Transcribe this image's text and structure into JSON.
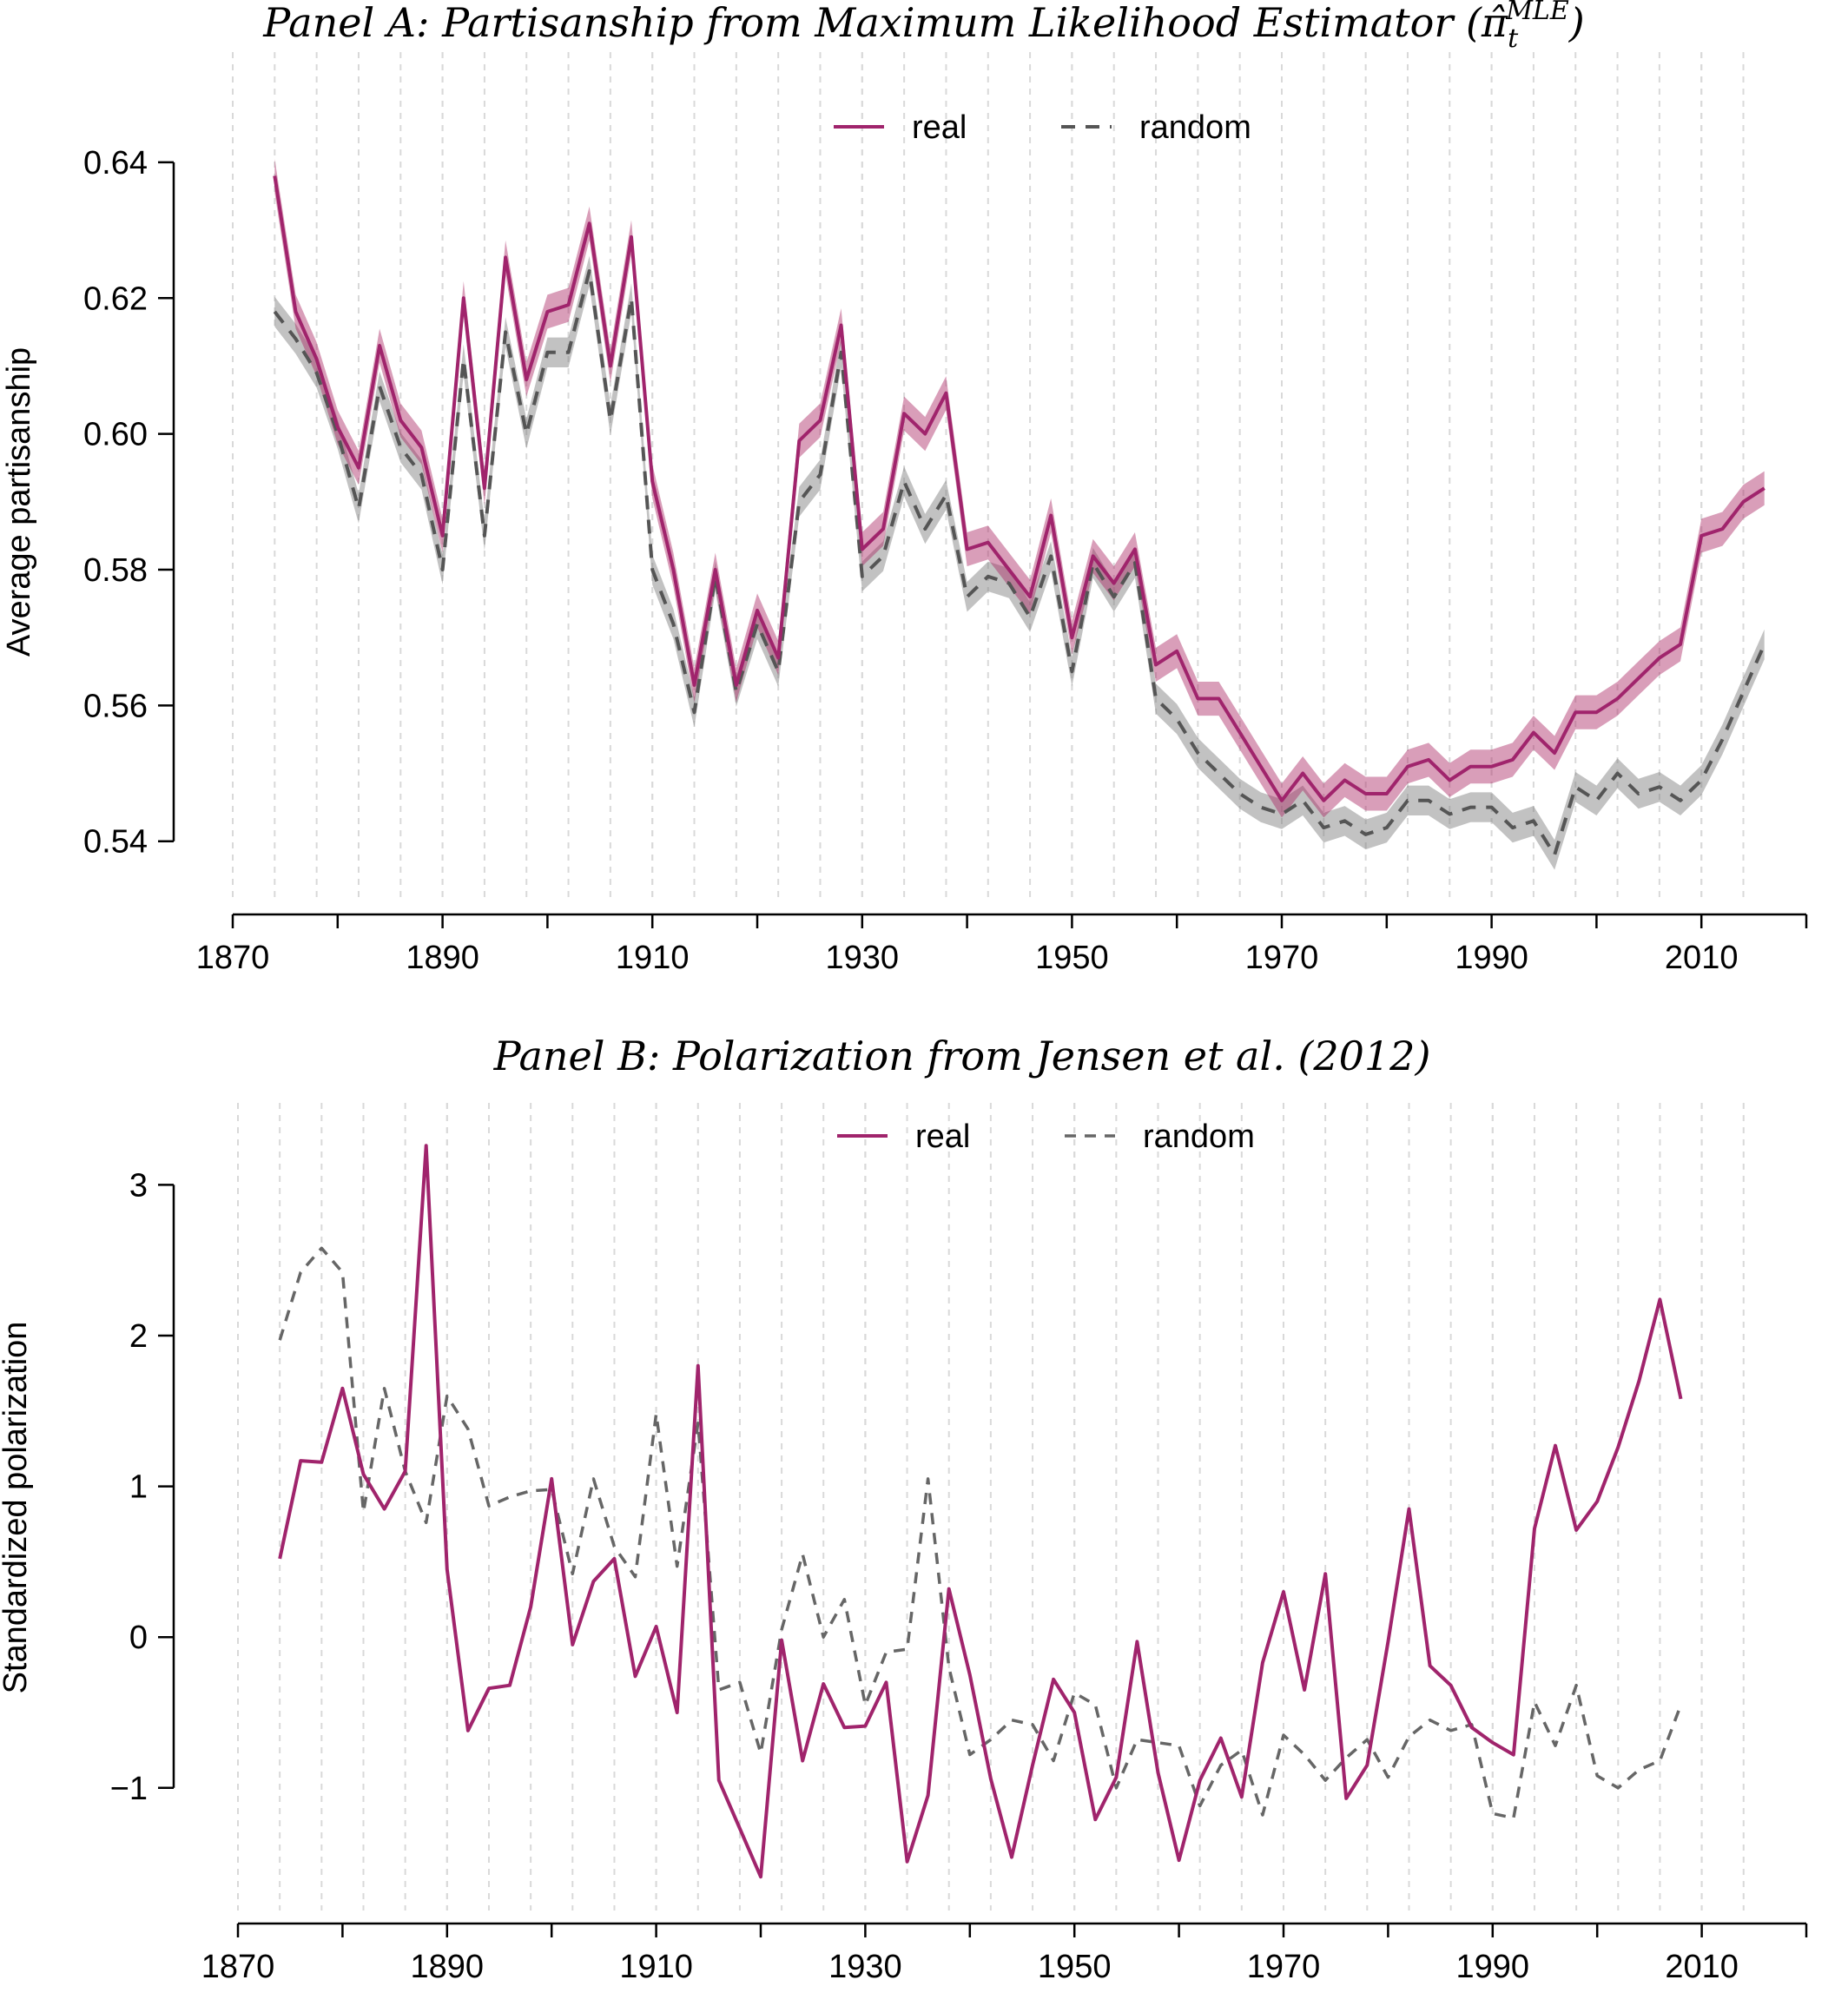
{
  "chart_data": [
    {
      "type": "line",
      "title_main": "Panel A: Partisanship from Maximum Likelihood Estimator (",
      "title_symbol": "π̂",
      "title_sub": "t",
      "title_sup": "MLE",
      "title_end": ")",
      "ylabel": "Average partisanship",
      "xlabel": "",
      "xlim": [
        1870,
        2020
      ],
      "ylim": [
        0.536,
        0.646
      ],
      "x_ticks": [
        "1870",
        "1890",
        "1910",
        "1930",
        "1950",
        "1970",
        "1990",
        "2010"
      ],
      "y_ticks": [
        "0.54",
        "0.56",
        "0.58",
        "0.60",
        "0.62",
        "0.64"
      ],
      "vgrid_every": 4,
      "legend_position": "top-center",
      "x": [
        1874,
        1876,
        1878,
        1880,
        1882,
        1884,
        1886,
        1888,
        1890,
        1892,
        1894,
        1896,
        1898,
        1900,
        1902,
        1904,
        1906,
        1908,
        1910,
        1912,
        1914,
        1916,
        1918,
        1920,
        1922,
        1924,
        1926,
        1928,
        1930,
        1932,
        1934,
        1936,
        1938,
        1940,
        1942,
        1944,
        1946,
        1948,
        1950,
        1952,
        1954,
        1956,
        1958,
        1960,
        1962,
        1964,
        1966,
        1968,
        1970,
        1972,
        1974,
        1976,
        1978,
        1980,
        1982,
        1984,
        1986,
        1988,
        1990,
        1992,
        1994,
        1996,
        1998,
        2000,
        2002,
        2004,
        2006,
        2008,
        2010,
        2012,
        2014,
        2016
      ],
      "series": [
        {
          "name": "real",
          "color": "#A0246C",
          "dash": "solid",
          "band": 0.0025,
          "values": [
            0.638,
            0.618,
            0.611,
            0.601,
            0.595,
            0.613,
            0.602,
            0.598,
            0.585,
            0.62,
            0.592,
            0.626,
            0.608,
            0.618,
            0.619,
            0.631,
            0.61,
            0.629,
            0.593,
            0.58,
            0.563,
            0.58,
            0.563,
            0.574,
            0.567,
            0.599,
            0.602,
            0.616,
            0.583,
            0.586,
            0.603,
            0.6,
            0.606,
            0.583,
            0.584,
            0.58,
            0.576,
            0.588,
            0.57,
            0.582,
            0.578,
            0.583,
            0.566,
            0.568,
            0.561,
            0.561,
            0.556,
            0.551,
            0.546,
            0.55,
            0.546,
            0.549,
            0.547,
            0.547,
            0.551,
            0.552,
            0.549,
            0.551,
            0.551,
            0.552,
            0.556,
            0.553,
            0.559,
            0.559,
            0.561,
            0.564,
            0.567,
            0.569,
            0.585,
            0.586,
            0.59,
            0.592
          ]
        },
        {
          "name": "random",
          "color": "#555555",
          "dash": "dashed",
          "band": 0.0022,
          "values": [
            0.618,
            0.614,
            0.609,
            0.6,
            0.589,
            0.607,
            0.598,
            0.594,
            0.58,
            0.611,
            0.585,
            0.615,
            0.6,
            0.612,
            0.612,
            0.624,
            0.602,
            0.62,
            0.58,
            0.572,
            0.559,
            0.579,
            0.562,
            0.572,
            0.565,
            0.59,
            0.594,
            0.612,
            0.579,
            0.582,
            0.593,
            0.586,
            0.591,
            0.576,
            0.579,
            0.578,
            0.573,
            0.582,
            0.565,
            0.581,
            0.576,
            0.581,
            0.561,
            0.558,
            0.553,
            0.55,
            0.547,
            0.545,
            0.544,
            0.546,
            0.542,
            0.543,
            0.541,
            0.542,
            0.546,
            0.546,
            0.544,
            0.545,
            0.545,
            0.542,
            0.543,
            0.538,
            0.548,
            0.546,
            0.55,
            0.547,
            0.548,
            0.546,
            0.549,
            0.555,
            0.562,
            0.569
          ]
        }
      ]
    },
    {
      "type": "line",
      "title": "Panel B: Polarization from Jensen et al. (2012)",
      "ylabel": "Standardized polarization",
      "xlabel": "",
      "xlim": [
        1870,
        2020
      ],
      "ylim": [
        -1.9,
        3.4
      ],
      "x_ticks": [
        "1870",
        "1890",
        "1910",
        "1930",
        "1950",
        "1970",
        "1990",
        "2010"
      ],
      "y_ticks": [
        "−1",
        "0",
        "1",
        "2",
        "3"
      ],
      "vgrid_every": 4,
      "legend_position": "top-center",
      "series": [
        {
          "name": "real",
          "color": "#A0246C",
          "dash": "solid",
          "x": [
            1874,
            1876,
            1878,
            1880,
            1882,
            1884,
            1886,
            1888,
            1890,
            1892,
            1894,
            1896,
            1898,
            1900,
            1902,
            1904,
            1906,
            1908,
            1910,
            1912,
            1914,
            1916,
            1918,
            1920,
            1922,
            1924,
            1926,
            1928,
            1930,
            1932,
            1934,
            1936,
            1938,
            1940,
            1942,
            1944,
            1946,
            1948,
            1950,
            1952,
            1954,
            1956,
            1958,
            1960,
            1962,
            1964,
            1966,
            1968,
            1970,
            1972,
            1974,
            1976,
            1978,
            1980,
            1982,
            1984,
            1986,
            1988,
            1990,
            1992,
            1994,
            1996,
            1998,
            2000,
            2002,
            2004,
            2006,
            2008
          ],
          "values": [
            0.52,
            1.17,
            1.16,
            1.65,
            1.08,
            0.85,
            1.1,
            3.26,
            0.45,
            -0.62,
            -0.34,
            -0.32,
            0.2,
            1.05,
            -0.05,
            0.37,
            0.52,
            -0.26,
            0.07,
            -0.5,
            1.8,
            -0.95,
            -1.27,
            -1.59,
            -0.02,
            -0.82,
            -0.31,
            -0.6,
            -0.59,
            -0.3,
            -1.49,
            -1.05,
            0.32,
            -0.25,
            -0.94,
            -1.46,
            -0.85,
            -0.28,
            -0.5,
            -1.21,
            -0.93,
            -0.03,
            -0.9,
            -1.48,
            -0.95,
            -0.67,
            -1.06,
            -0.17,
            0.3,
            -0.35,
            0.42,
            -1.07,
            -0.85,
            -0.03,
            0.85,
            -0.19,
            -0.32,
            -0.6,
            -0.7,
            -0.78,
            0.72,
            1.27,
            0.71,
            0.9,
            1.26,
            1.7,
            2.24,
            1.58
          ]
        },
        {
          "name": "random",
          "color": "#666666",
          "dash": "dashed",
          "x": [
            1874,
            1876,
            1878,
            1880,
            1882,
            1884,
            1886,
            1888,
            1890,
            1892,
            1894,
            1896,
            1898,
            1900,
            1902,
            1904,
            1906,
            1908,
            1910,
            1912,
            1914,
            1916,
            1918,
            1920,
            1922,
            1924,
            1926,
            1928,
            1930,
            1932,
            1934,
            1936,
            1938,
            1940,
            1942,
            1944,
            1946,
            1948,
            1950,
            1952,
            1954,
            1956,
            1958,
            1960,
            1962,
            1964,
            1966,
            1968,
            1970,
            1972,
            1974,
            1976,
            1978,
            1980,
            1982,
            1984,
            1986,
            1988,
            1990,
            1992,
            1994,
            1996,
            1998,
            2000,
            2002,
            2004,
            2006,
            2008
          ],
          "values": [
            1.97,
            2.42,
            2.58,
            2.42,
            0.83,
            1.65,
            1.1,
            0.76,
            1.6,
            1.38,
            0.87,
            0.93,
            0.97,
            0.98,
            0.42,
            1.05,
            0.6,
            0.4,
            1.48,
            0.47,
            1.42,
            -0.35,
            -0.3,
            -0.77,
            0.05,
            0.55,
            0.0,
            0.25,
            -0.45,
            -0.1,
            -0.08,
            1.05,
            -0.2,
            -0.78,
            -0.68,
            -0.55,
            -0.58,
            -0.82,
            -0.37,
            -0.45,
            -1.0,
            -0.68,
            -0.7,
            -0.72,
            -1.12,
            -0.85,
            -0.75,
            -1.18,
            -0.65,
            -0.78,
            -0.95,
            -0.8,
            -0.68,
            -0.93,
            -0.66,
            -0.55,
            -0.62,
            -0.58,
            -1.17,
            -1.2,
            -0.43,
            -0.72,
            -0.32,
            -0.92,
            -1.0,
            -0.88,
            -0.82,
            -0.45
          ]
        }
      ]
    }
  ]
}
